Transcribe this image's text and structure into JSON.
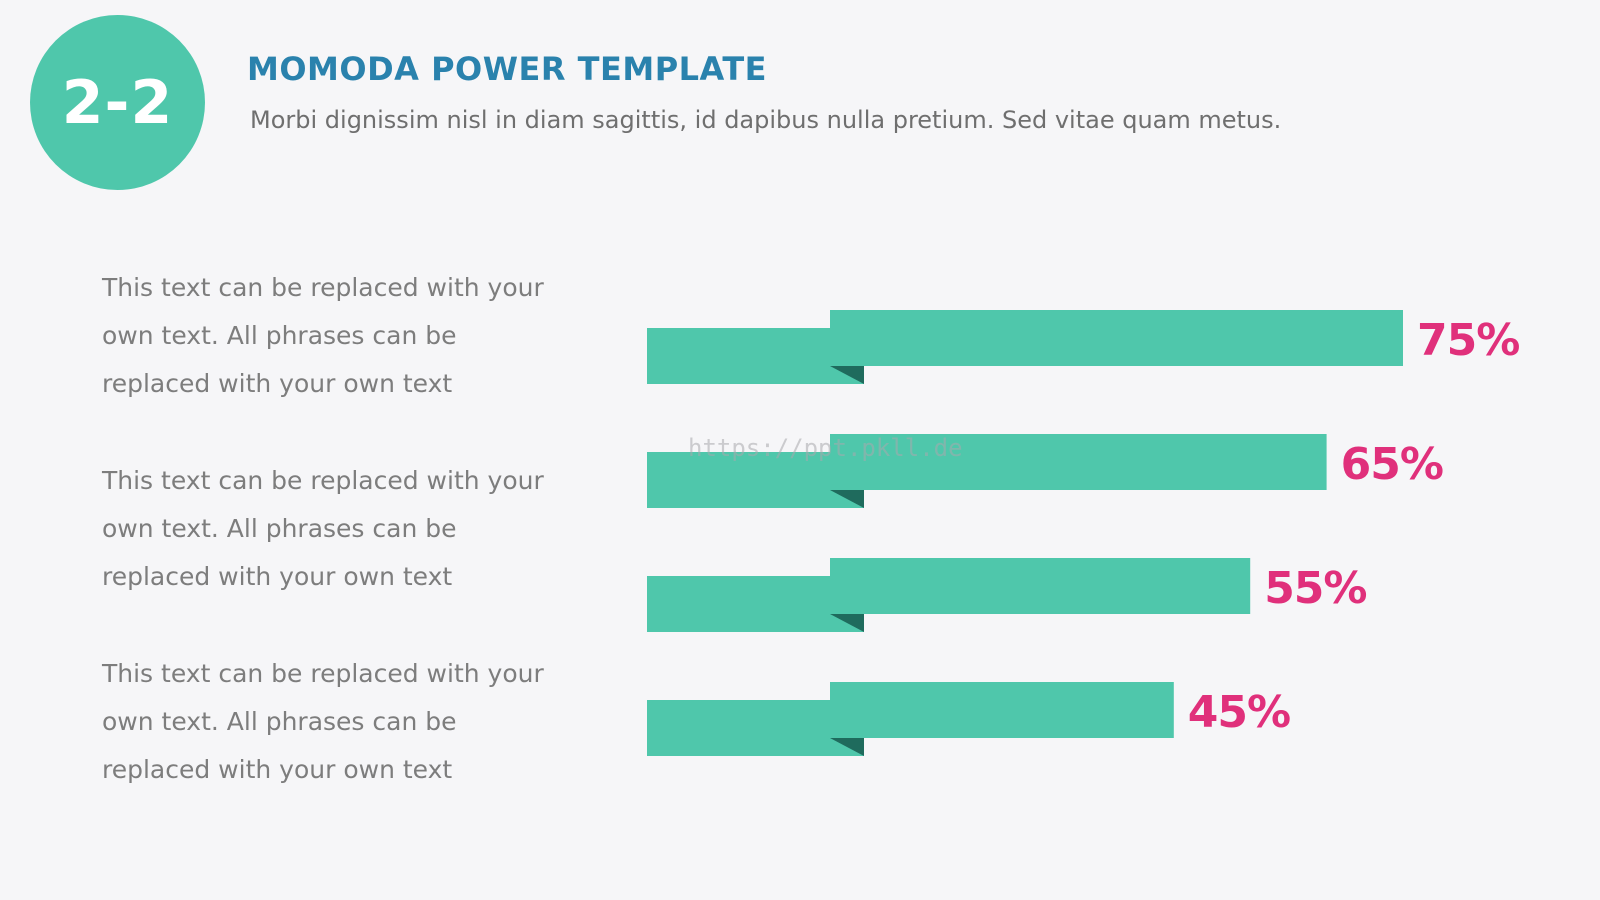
{
  "header": {
    "badge": "2-2",
    "title": "MOMODA POWER TEMPLATE",
    "subtitle": "Morbi dignissim nisl in diam sagittis, id dapibus nulla pretium. Sed vitae quam metus."
  },
  "descriptions": [
    {
      "lines": [
        "This text can be replaced with your",
        "own text. All phrases can be",
        "replaced with your own text"
      ]
    },
    {
      "lines": [
        "This text can be replaced with your",
        "own text. All phrases can be",
        "replaced with your own text"
      ]
    },
    {
      "lines": [
        "This text can be replaced with your",
        "own text. All phrases can be",
        "replaced with your own text"
      ]
    }
  ],
  "watermark": "https://ppt.pkll.de",
  "colors": {
    "accent": "#4fc7ab",
    "accent_dark": "#1f6b5d",
    "title": "#2a82ad",
    "value_label": "#e0307b",
    "background": "#f6f6f8"
  },
  "chart_data": {
    "type": "bar",
    "orientation": "horizontal",
    "categories": [
      "",
      "",
      "",
      ""
    ],
    "values": [
      75,
      65,
      55,
      45
    ],
    "labels": [
      "75%",
      "65%",
      "55%",
      "45%"
    ],
    "xlim": [
      0,
      100
    ],
    "grid": false,
    "legend": "none",
    "title": "",
    "xlabel": "",
    "ylabel": ""
  }
}
